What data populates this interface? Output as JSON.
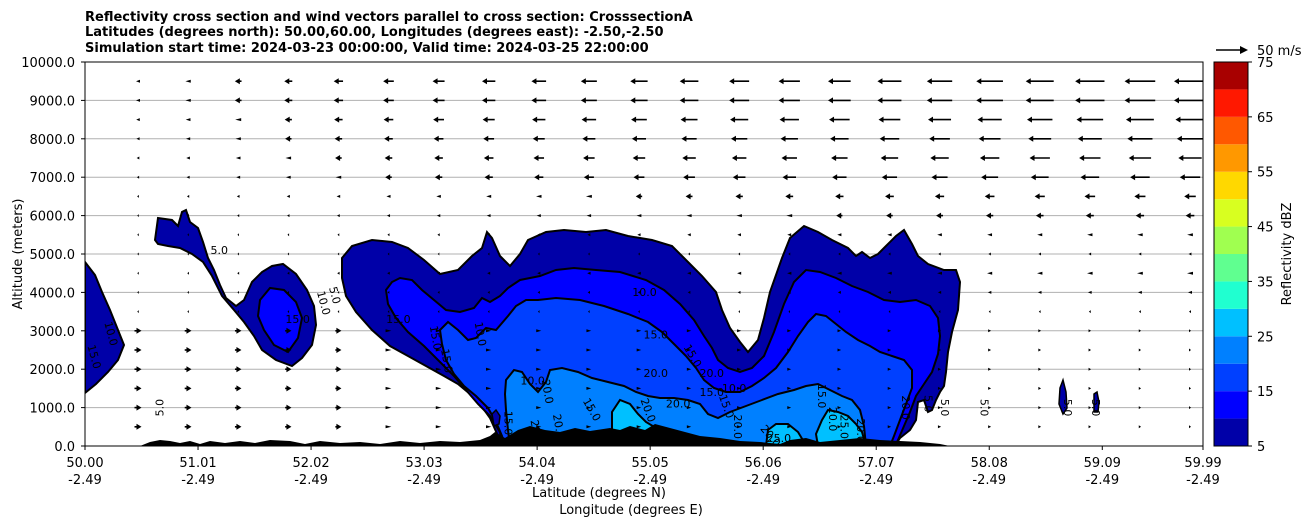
{
  "chart_data": {
    "type": "contourf",
    "title_lines": [
      "Reflectivity cross section and wind vectors parallel to cross section: CrosssectionA",
      "Latitudes (degrees north): 50.00,60.00, Longitudes (degrees east): -2.50,-2.50",
      "Simulation start time: 2024-03-23 00:00:00, Valid time: 2024-03-25 22:00:00"
    ],
    "xlabel_lat": "Latitude (degrees N)",
    "xlabel_lon": "Longitude (degrees E)",
    "ylabel": "Altitude (meters)",
    "xlim": [
      50.0,
      59.99
    ],
    "ylim": [
      0,
      10000
    ],
    "x_ticks": [
      {
        "lat": "50.00",
        "lon": "-2.49",
        "value": 50.0
      },
      {
        "lat": "51.01",
        "lon": "-2.49",
        "value": 51.01
      },
      {
        "lat": "52.02",
        "lon": "-2.49",
        "value": 52.02
      },
      {
        "lat": "53.03",
        "lon": "-2.49",
        "value": 53.03
      },
      {
        "lat": "54.04",
        "lon": "-2.49",
        "value": 54.04
      },
      {
        "lat": "55.05",
        "lon": "-2.49",
        "value": 55.05
      },
      {
        "lat": "56.06",
        "lon": "-2.49",
        "value": 56.06
      },
      {
        "lat": "57.07",
        "lon": "-2.49",
        "value": 57.07
      },
      {
        "lat": "58.08",
        "lon": "-2.49",
        "value": 58.08
      },
      {
        "lat": "59.09",
        "lon": "-2.49",
        "value": 59.09
      },
      {
        "lat": "59.99",
        "lon": "-2.49",
        "value": 59.99
      }
    ],
    "y_ticks": [
      "0.0",
      "1000.0",
      "2000.0",
      "3000.0",
      "4000.0",
      "5000.0",
      "6000.0",
      "7000.0",
      "8000.0",
      "9000.0",
      "10000.0"
    ],
    "grid": "horizontal",
    "colorbar": {
      "label": "Reflectivity dBZ",
      "ticks": [
        "5",
        "15",
        "25",
        "35",
        "45",
        "55",
        "65",
        "75"
      ],
      "levels": [
        5,
        10,
        15,
        20,
        25,
        30,
        35,
        40,
        45,
        50,
        55,
        60,
        65,
        70,
        75
      ],
      "colors": [
        "#0000a8",
        "#0000ff",
        "#0040ff",
        "#0080ff",
        "#00c0ff",
        "#20ffd0",
        "#60ff90",
        "#a0ff50",
        "#d8ff20",
        "#ffd800",
        "#ff9800",
        "#ff5800",
        "#ff1800",
        "#a80000"
      ]
    },
    "reference_vector": "50 m/s",
    "contour_labels": [
      {
        "text": "5.0",
        "lat": 50.7,
        "z": 1000,
        "rot": -90
      },
      {
        "text": "10.0",
        "lat": 50.2,
        "z": 2900,
        "rot": 75
      },
      {
        "text": "15.0",
        "lat": 50.05,
        "z": 2300,
        "rot": 75
      },
      {
        "text": "5.0",
        "lat": 51.2,
        "z": 5000,
        "rot": 0
      },
      {
        "text": "15.0",
        "lat": 51.9,
        "z": 3200,
        "rot": 0
      },
      {
        "text": "10.0",
        "lat": 52.1,
        "z": 3700,
        "rot": 75
      },
      {
        "text": "5.0",
        "lat": 52.2,
        "z": 3900,
        "rot": 75
      },
      {
        "text": "15.0",
        "lat": 52.8,
        "z": 3200,
        "rot": 0
      },
      {
        "text": "15.0",
        "lat": 53.1,
        "z": 2800,
        "rot": 80
      },
      {
        "text": "15.0",
        "lat": 53.2,
        "z": 2200,
        "rot": 80
      },
      {
        "text": "10.0",
        "lat": 53.5,
        "z": 2900,
        "rot": 80
      },
      {
        "text": "10.0",
        "lat": 55.0,
        "z": 3900,
        "rot": 0
      },
      {
        "text": "15.0",
        "lat": 55.1,
        "z": 2800,
        "rot": 0
      },
      {
        "text": "20.0",
        "lat": 55.1,
        "z": 1800,
        "rot": 0
      },
      {
        "text": "15.0",
        "lat": 55.4,
        "z": 2300,
        "rot": 60
      },
      {
        "text": "20.0",
        "lat": 55.6,
        "z": 1800,
        "rot": 0
      },
      {
        "text": "15.0",
        "lat": 55.6,
        "z": 1300,
        "rot": 0
      },
      {
        "text": "20.0",
        "lat": 55.3,
        "z": 1000,
        "rot": 0
      },
      {
        "text": "15.0",
        "lat": 55.7,
        "z": 1000,
        "rot": 70
      },
      {
        "text": "10.0",
        "lat": 54.0,
        "z": 1600,
        "rot": 0
      },
      {
        "text": "20.0",
        "lat": 54.1,
        "z": 1400,
        "rot": 80
      },
      {
        "text": "15.0",
        "lat": 54.5,
        "z": 900,
        "rot": 60
      },
      {
        "text": "20.0",
        "lat": 54.2,
        "z": 500,
        "rot": 80
      },
      {
        "text": "20.0",
        "lat": 54.0,
        "z": 350,
        "rot": 80
      },
      {
        "text": "20.0",
        "lat": 55.0,
        "z": 900,
        "rot": 70
      },
      {
        "text": "10.0",
        "lat": 55.8,
        "z": 1400,
        "rot": 0
      },
      {
        "text": "20.0",
        "lat": 55.8,
        "z": 500,
        "rot": 90
      },
      {
        "text": "20.0",
        "lat": 56.1,
        "z": 200,
        "rot": 50
      },
      {
        "text": "25.0",
        "lat": 56.2,
        "z": 100,
        "rot": 0
      },
      {
        "text": "15.0",
        "lat": 56.55,
        "z": 1300,
        "rot": 90
      },
      {
        "text": "20.0",
        "lat": 56.65,
        "z": 700,
        "rot": 90
      },
      {
        "text": "25.0",
        "lat": 56.75,
        "z": 500,
        "rot": 90
      },
      {
        "text": "20.0",
        "lat": 56.9,
        "z": 400,
        "rot": 90
      },
      {
        "text": "20.0",
        "lat": 57.3,
        "z": 1000,
        "rot": 90
      },
      {
        "text": "5.0",
        "lat": 57.5,
        "z": 1100,
        "rot": 90
      },
      {
        "text": "5.0",
        "lat": 57.65,
        "z": 1000,
        "rot": 90
      },
      {
        "text": "5.0",
        "lat": 58.0,
        "z": 1000,
        "rot": 90
      },
      {
        "text": "5.0",
        "lat": 58.75,
        "z": 1000,
        "rot": 90
      },
      {
        "text": "5.0",
        "lat": 59.0,
        "z": 1000,
        "rot": 90
      },
      {
        "text": "15.0",
        "lat": 53.75,
        "z": 600,
        "rot": 90
      }
    ]
  }
}
